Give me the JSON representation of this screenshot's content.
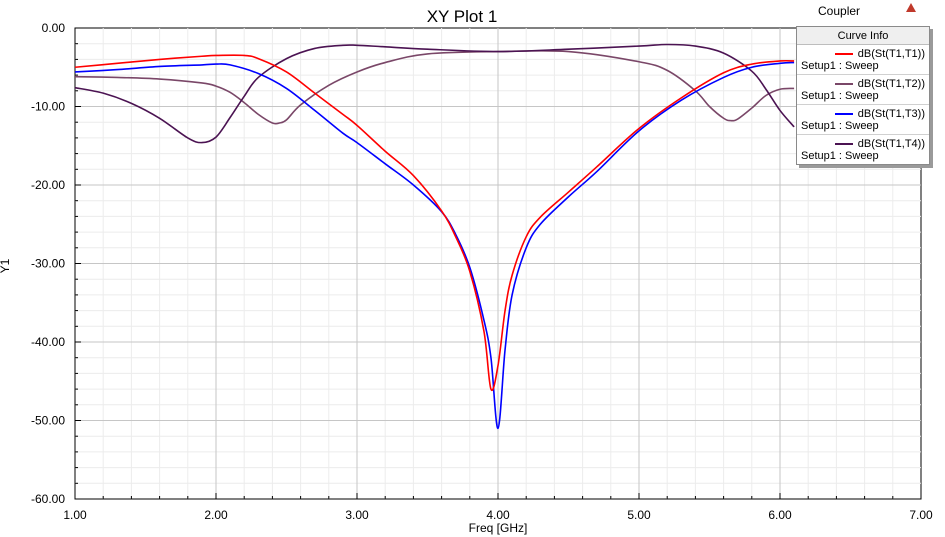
{
  "project_name": "Coupler",
  "chart_data": {
    "type": "line",
    "title": "XY Plot 1",
    "xlabel": "Freq [GHz]",
    "ylabel": "Y1",
    "xlim": [
      1.0,
      7.0
    ],
    "ylim": [
      -60.0,
      0.0
    ],
    "x_ticks": [
      "1.00",
      "2.00",
      "3.00",
      "4.00",
      "5.00",
      "6.00",
      "7.00"
    ],
    "y_ticks": [
      "0.00",
      "-10.00",
      "-20.00",
      "-30.00",
      "-40.00",
      "-50.00",
      "-60.00"
    ],
    "grid": true,
    "legend_placement": "top-right",
    "legend_title": "Curve Info",
    "series": [
      {
        "name": "dB(St(T1,T1))",
        "setup": "Setup1 : Sweep",
        "color": "#ff0000",
        "x": [
          1.0,
          1.3,
          1.6,
          1.9,
          2.0,
          2.2,
          2.3,
          2.5,
          2.7,
          2.9,
          3.0,
          3.2,
          3.4,
          3.6,
          3.7,
          3.8,
          3.9,
          3.95,
          4.0,
          4.05,
          4.1,
          4.2,
          4.3,
          4.5,
          4.7,
          5.0,
          5.3,
          5.6,
          5.8,
          6.0,
          6.1
        ],
        "y": [
          -5.0,
          -4.5,
          -4.0,
          -3.6,
          -3.5,
          -3.5,
          -3.9,
          -5.6,
          -8.3,
          -11.0,
          -12.4,
          -15.7,
          -18.8,
          -23.3,
          -26.6,
          -31.0,
          -38.6,
          -46.0,
          -43.0,
          -36.0,
          -31.5,
          -26.6,
          -24.1,
          -20.9,
          -17.7,
          -12.8,
          -8.9,
          -5.7,
          -4.6,
          -4.2,
          -4.2
        ]
      },
      {
        "name": "dB(St(T1,T2))",
        "setup": "Setup1 : Sweep",
        "color": "#7a4768",
        "x": [
          1.0,
          1.3,
          1.6,
          1.9,
          2.0,
          2.1,
          2.2,
          2.3,
          2.4,
          2.45,
          2.5,
          2.6,
          2.8,
          3.0,
          3.2,
          3.5,
          4.0,
          4.5,
          5.0,
          5.2,
          5.4,
          5.5,
          5.6,
          5.65,
          5.7,
          5.8,
          5.9,
          6.0,
          6.1
        ],
        "y": [
          -6.2,
          -6.3,
          -6.5,
          -7.0,
          -7.4,
          -8.2,
          -9.5,
          -11.0,
          -12.1,
          -12.1,
          -11.7,
          -9.8,
          -7.3,
          -5.6,
          -4.4,
          -3.3,
          -3.0,
          -3.0,
          -4.3,
          -5.4,
          -8.0,
          -10.0,
          -11.5,
          -11.8,
          -11.6,
          -10.2,
          -8.6,
          -7.8,
          -7.7
        ]
      },
      {
        "name": "dB(St(T1,T3))",
        "setup": "Setup1 : Sweep",
        "color": "#0000ff",
        "x": [
          1.0,
          1.3,
          1.6,
          1.9,
          2.0,
          2.1,
          2.3,
          2.5,
          2.7,
          2.9,
          3.0,
          3.2,
          3.4,
          3.6,
          3.7,
          3.8,
          3.9,
          3.95,
          4.0,
          4.05,
          4.1,
          4.2,
          4.3,
          4.5,
          4.7,
          5.0,
          5.3,
          5.6,
          5.8,
          6.0,
          6.1
        ],
        "y": [
          -5.6,
          -5.3,
          -4.9,
          -4.7,
          -4.6,
          -4.7,
          -5.8,
          -7.7,
          -10.5,
          -13.4,
          -14.6,
          -17.3,
          -20.0,
          -23.4,
          -26.3,
          -30.5,
          -37.2,
          -42.0,
          -51.0,
          -41.0,
          -34.0,
          -28.0,
          -25.0,
          -21.5,
          -18.3,
          -13.1,
          -9.2,
          -6.3,
          -5.0,
          -4.5,
          -4.4
        ]
      },
      {
        "name": "dB(St(T1,T4))",
        "setup": "Setup1 : Sweep",
        "color": "#4b1352",
        "x": [
          1.0,
          1.2,
          1.4,
          1.6,
          1.8,
          1.9,
          2.0,
          2.1,
          2.2,
          2.3,
          2.5,
          2.7,
          2.9,
          3.0,
          3.2,
          3.5,
          4.0,
          4.5,
          5.0,
          5.2,
          5.4,
          5.6,
          5.8,
          5.9,
          6.0,
          6.1
        ],
        "y": [
          -7.6,
          -8.3,
          -9.6,
          -11.5,
          -14.0,
          -14.6,
          -13.9,
          -11.4,
          -8.7,
          -6.3,
          -3.9,
          -2.6,
          -2.2,
          -2.2,
          -2.4,
          -2.7,
          -3.0,
          -2.7,
          -2.3,
          -2.1,
          -2.3,
          -3.2,
          -5.5,
          -7.8,
          -10.5,
          -12.6
        ]
      }
    ]
  }
}
